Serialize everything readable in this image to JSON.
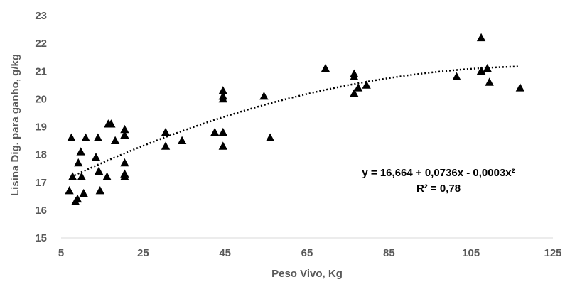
{
  "chart_data": {
    "type": "scatter",
    "title": "",
    "xlabel": "Peso Vivo, Kg",
    "ylabel": "Lisina Dig. para ganho, g/kg",
    "xlim": [
      5,
      125
    ],
    "ylim": [
      15,
      23
    ],
    "xticks": [
      5,
      25,
      45,
      65,
      85,
      105,
      125
    ],
    "yticks": [
      15,
      16,
      17,
      18,
      19,
      20,
      21,
      22,
      23
    ],
    "grid": false,
    "legend": "none",
    "marker": "triangle",
    "marker_color": "#000000",
    "series": [
      {
        "points": [
          [
            7.0,
            16.7
          ],
          [
            7.5,
            18.6
          ],
          [
            7.8,
            17.2
          ],
          [
            8.5,
            16.3
          ],
          [
            9.0,
            16.4
          ],
          [
            9.2,
            17.7
          ],
          [
            9.8,
            18.1
          ],
          [
            10.0,
            17.2
          ],
          [
            10.5,
            16.6
          ],
          [
            11.0,
            18.6
          ],
          [
            13.5,
            17.9
          ],
          [
            14.0,
            18.6
          ],
          [
            14.2,
            17.4
          ],
          [
            14.5,
            16.7
          ],
          [
            16.2,
            17.2
          ],
          [
            16.5,
            19.1
          ],
          [
            17.2,
            19.1
          ],
          [
            18.2,
            18.5
          ],
          [
            20.5,
            18.9
          ],
          [
            20.5,
            18.7
          ],
          [
            20.5,
            17.7
          ],
          [
            20.5,
            17.3
          ],
          [
            20.5,
            17.2
          ],
          [
            30.5,
            18.8
          ],
          [
            30.5,
            18.3
          ],
          [
            34.5,
            18.5
          ],
          [
            42.5,
            18.8
          ],
          [
            44.5,
            18.8
          ],
          [
            44.5,
            18.3
          ],
          [
            44.5,
            20.3
          ],
          [
            44.5,
            20.0
          ],
          [
            44.5,
            20.1
          ],
          [
            54.5,
            20.1
          ],
          [
            56.0,
            18.6
          ],
          [
            69.5,
            21.1
          ],
          [
            76.5,
            20.9
          ],
          [
            76.5,
            20.8
          ],
          [
            76.5,
            20.2
          ],
          [
            77.5,
            20.4
          ],
          [
            79.5,
            20.5
          ],
          [
            101.5,
            20.8
          ],
          [
            107.5,
            22.2
          ],
          [
            107.5,
            21.0
          ],
          [
            107.5,
            21.0
          ],
          [
            109.0,
            21.1
          ],
          [
            109.5,
            20.6
          ],
          [
            117.0,
            20.4
          ]
        ]
      }
    ],
    "trendline": {
      "type": "polynomial",
      "coefficients": [
        16.664,
        0.0736,
        -0.0003
      ],
      "x_range": [
        7.5,
        116.5
      ],
      "style": "dotted"
    },
    "annotations": {
      "equation": "y = 16,664 + 0,0736x - 0,0003x²",
      "r_squared": "R² = 0,78"
    }
  }
}
